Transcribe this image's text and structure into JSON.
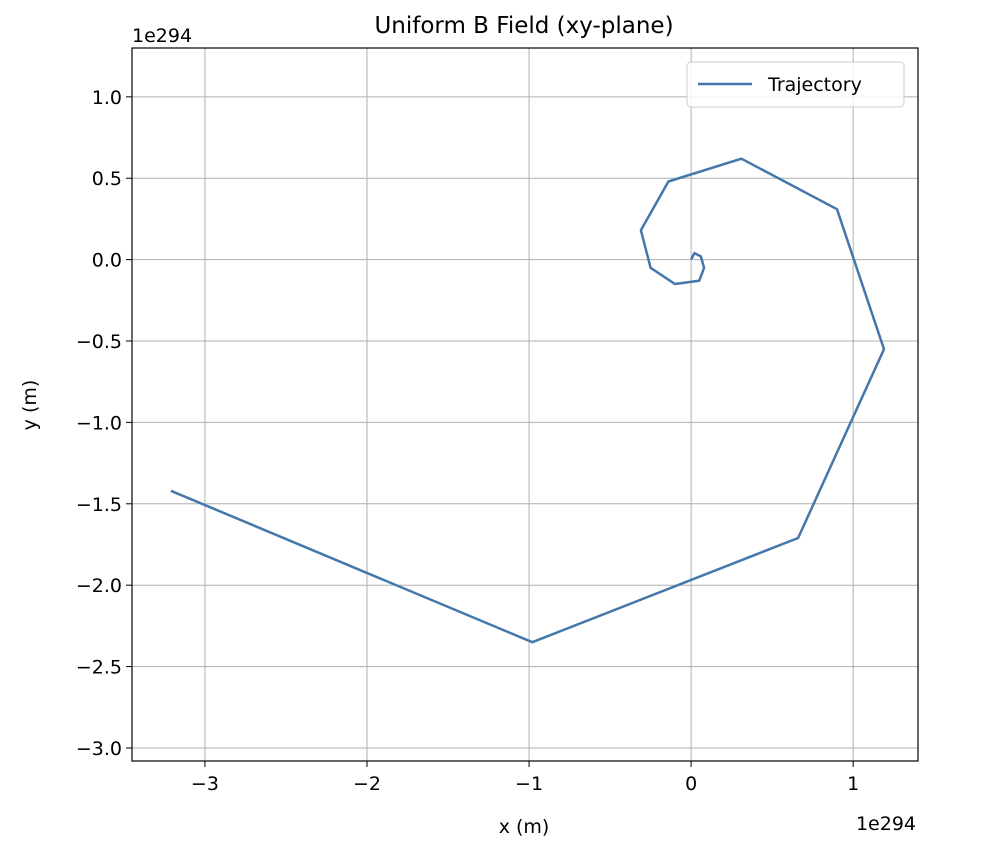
{
  "chart_data": {
    "type": "line",
    "title": "Uniform B Field (xy-plane)",
    "xlabel": "x (m)",
    "ylabel": "y (m)",
    "x_offset_text": "1e294",
    "y_offset_text": "1e294",
    "xlim": [
      -3.45,
      1.4
    ],
    "ylim": [
      -3.08,
      1.3
    ],
    "xticks": [
      -3,
      -2,
      -1,
      0,
      1
    ],
    "xtick_labels": [
      "−3",
      "−2",
      "−1",
      "0",
      "1"
    ],
    "yticks": [
      1.0,
      0.5,
      0.0,
      -0.5,
      -1.0,
      -1.5,
      -2.0,
      -2.5,
      -3.0
    ],
    "ytick_labels": [
      "1.0",
      "0.5",
      "0.0",
      "−0.5",
      "−1.0",
      "−1.5",
      "−2.0",
      "−2.5",
      "−3.0"
    ],
    "grid": true,
    "legend_position": "upper right",
    "series": [
      {
        "name": "Trajectory",
        "color": "#4477aa",
        "x": [
          0.0,
          0.02,
          0.06,
          0.08,
          0.05,
          -0.1,
          -0.25,
          -0.31,
          -0.14,
          0.31,
          0.9,
          1.19,
          0.66,
          -0.98,
          -3.21
        ],
        "y": [
          0.0,
          0.04,
          0.02,
          -0.05,
          -0.13,
          -0.15,
          -0.05,
          0.18,
          0.48,
          0.62,
          0.31,
          -0.55,
          -1.71,
          -2.35,
          -1.42
        ]
      }
    ]
  }
}
